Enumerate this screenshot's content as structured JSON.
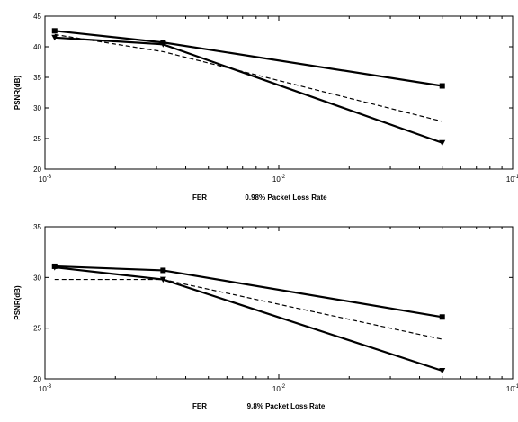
{
  "chart_data": [
    {
      "type": "line",
      "title": "",
      "xlabel": "FER",
      "caption": "0.98% Packet Loss Rate",
      "ylabel": "PSNR(dB)",
      "x_scale": "log",
      "xlim": [
        0.001,
        0.1
      ],
      "ylim": [
        20,
        45
      ],
      "y_ticks": [
        "20",
        "25",
        "30",
        "35",
        "40",
        "45"
      ],
      "x_ticks": [
        {
          "value": 0.001,
          "base": "10",
          "exp": "-3"
        },
        {
          "value": 0.01,
          "base": "10",
          "exp": "-2"
        },
        {
          "value": 0.1,
          "base": "10",
          "exp": "-1"
        }
      ],
      "grid": false,
      "series": [
        {
          "x": [
            0.0011,
            0.0032,
            0.05
          ],
          "values": [
            42.6,
            40.7,
            33.6
          ],
          "style": "solid",
          "marker": "square"
        },
        {
          "x": [
            0.0011,
            0.0032,
            0.05
          ],
          "values": [
            41.5,
            40.4,
            24.3
          ],
          "style": "solid",
          "marker": "triangle-down"
        },
        {
          "x": [
            0.0011,
            0.0032,
            0.05
          ],
          "values": [
            42.0,
            39.2,
            27.8
          ],
          "style": "dashed",
          "marker": "none"
        }
      ]
    },
    {
      "type": "line",
      "title": "",
      "xlabel": "FER",
      "caption": "9.8% Packet Loss Rate",
      "ylabel": "PSNR(dB)",
      "x_scale": "log",
      "xlim": [
        0.001,
        0.1
      ],
      "ylim": [
        20,
        35
      ],
      "y_ticks": [
        "20",
        "25",
        "30",
        "35"
      ],
      "x_ticks": [
        {
          "value": 0.001,
          "base": "10",
          "exp": "-3"
        },
        {
          "value": 0.01,
          "base": "10",
          "exp": "-2"
        },
        {
          "value": 0.1,
          "base": "10",
          "exp": "-1"
        }
      ],
      "grid": false,
      "series": [
        {
          "x": [
            0.0011,
            0.0032,
            0.05
          ],
          "values": [
            31.1,
            30.7,
            26.1
          ],
          "style": "solid",
          "marker": "square"
        },
        {
          "x": [
            0.0011,
            0.0032,
            0.05
          ],
          "values": [
            31.0,
            29.8,
            20.8
          ],
          "style": "solid",
          "marker": "triangle-down"
        },
        {
          "x": [
            0.0011,
            0.0032,
            0.05
          ],
          "values": [
            29.8,
            29.8,
            23.9
          ],
          "style": "dashed",
          "marker": "none"
        }
      ]
    }
  ]
}
